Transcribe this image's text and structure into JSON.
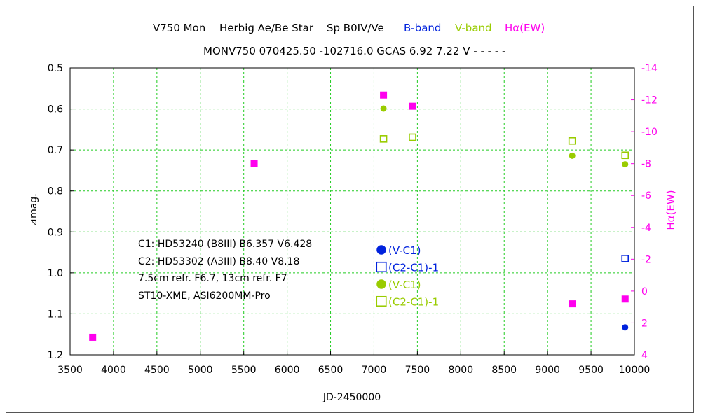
{
  "chart_data": {
    "type": "scatter",
    "title": {
      "star": "V750 Mon",
      "class": "Herbig Ae/Be Star",
      "sp": "Sp B0IV/Ve",
      "legend_b": "B-band",
      "legend_v": "V-band",
      "legend_ha": "Hα(EW)"
    },
    "subtitle": "MONV750 070425.50 -102716.0 GCAS 6.92 7.22 V - - - - -",
    "xlabel": "JD-2450000",
    "ylabel": "⊿mag.",
    "y2label": "Hα(EW)",
    "xlim": [
      3500,
      10000
    ],
    "ylim": [
      0.5,
      1.2
    ],
    "y_inverted": true,
    "y2lim": [
      -14,
      4
    ],
    "y2_inverted": true,
    "xticks": [
      3500,
      4000,
      4500,
      5000,
      5500,
      6000,
      6500,
      7000,
      7500,
      8000,
      8500,
      9000,
      9500,
      10000
    ],
    "yticks": [
      0.5,
      0.6,
      0.7,
      0.8,
      0.9,
      1.0,
      1.1,
      1.2
    ],
    "ytick_labels": [
      "0.5",
      "0.6",
      "0.7",
      "0.8",
      "0.9",
      "1.0",
      "1.1",
      "1.2"
    ],
    "y2ticks": [
      -14,
      -12,
      -10,
      -8,
      -6,
      -4,
      -2,
      0,
      2,
      4
    ],
    "grid": true,
    "colors": {
      "b": "#0022dd",
      "v": "#99cc00",
      "ha": "#ff00ee",
      "grid": "#22cc22"
    },
    "series": [
      {
        "name": "(V-C1)",
        "band": "B",
        "marker": "filled-circle",
        "color": "#0022dd",
        "x": [
          9893
        ],
        "y": [
          1.133
        ]
      },
      {
        "name": "(C2-C1)-1",
        "band": "B",
        "marker": "open-square",
        "color": "#0022dd",
        "x": [
          9893
        ],
        "y": [
          0.965
        ]
      },
      {
        "name": "(V-C1)",
        "band": "V",
        "marker": "filled-circle",
        "color": "#99cc00",
        "x": [
          7110,
          9283,
          9893
        ],
        "y": [
          0.599,
          0.714,
          0.735
        ]
      },
      {
        "name": "(C2-C1)-1",
        "band": "V",
        "marker": "open-square",
        "color": "#99cc00",
        "x": [
          7110,
          7444,
          9283,
          9893
        ],
        "y": [
          0.673,
          0.669,
          0.678,
          0.713
        ]
      },
      {
        "name": "Hα(EW)",
        "axis": "y2",
        "marker": "filled-square",
        "color": "#ff00ee",
        "x": [
          3760,
          5620,
          7110,
          7444,
          9283,
          9893
        ],
        "y": [
          2.9,
          -8.0,
          -12.3,
          -11.6,
          0.8,
          0.5
        ]
      }
    ],
    "annotations": [
      "C1: HD53240 (B8III) B6.357 V6.428",
      "C2: HD53302 (A3III) B8.40 V8.18",
      "7.5cm refr. F6.7, 13cm refr. F7",
      "ST10-XME, ASI6200MM-Pro"
    ],
    "legend": {
      "placement": "center-bottom",
      "entries": [
        {
          "label": "(V-C1)",
          "marker": "filled-circle",
          "color": "#0022dd"
        },
        {
          "label": "(C2-C1)-1",
          "marker": "open-square",
          "color": "#0022dd"
        },
        {
          "label": "(V-C1)",
          "marker": "filled-circle",
          "color": "#99cc00"
        },
        {
          "label": "(C2-C1)-1",
          "marker": "open-square",
          "color": "#99cc00"
        }
      ]
    }
  }
}
